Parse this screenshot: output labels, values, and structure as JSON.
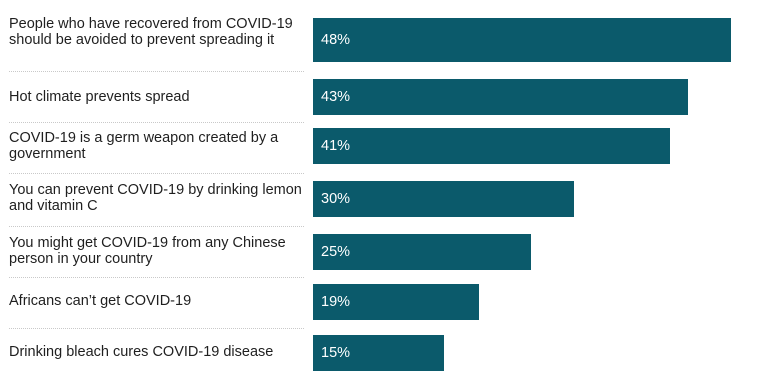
{
  "colors": {
    "bar": "#0b5a6b",
    "bar_text": "#ffffff",
    "label_text": "#1f1f1f"
  },
  "chart_data": {
    "type": "bar",
    "orientation": "horizontal",
    "categories": [
      "People who have recovered from COVID-19 should be avoided to prevent spreading it",
      "Hot climate prevents spread",
      "COVID-19 is a germ weapon created by a government",
      "You can prevent COVID-19 by drinking lemon and vitamin C",
      "You might get COVID-19 from any Chinese person in your country",
      "Africans can’t get COVID-19",
      "Drinking bleach cures COVID-19 disease"
    ],
    "values": [
      48,
      43,
      41,
      30,
      25,
      19,
      15
    ],
    "data_labels": [
      "48%",
      "43%",
      "41%",
      "30%",
      "25%",
      "19%",
      "15%"
    ],
    "xlim": [
      0,
      52
    ],
    "grid": false,
    "legend": "none"
  }
}
